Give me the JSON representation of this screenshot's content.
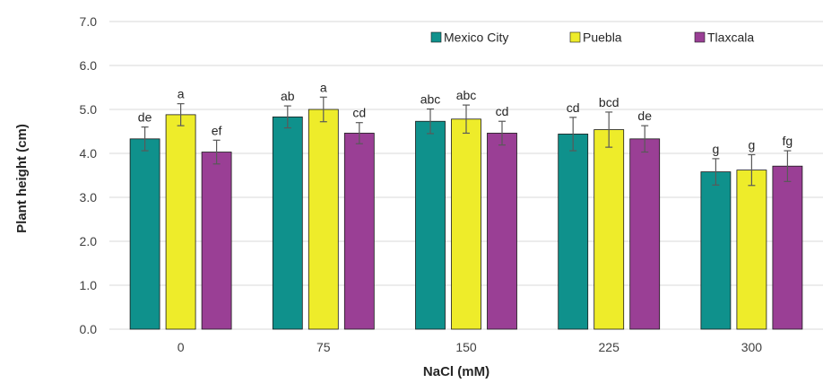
{
  "chart_data": {
    "type": "bar",
    "title": "",
    "xlabel": "NaCl (mM)",
    "ylabel": "Plant height (cm)",
    "ylim": [
      0,
      7
    ],
    "yticks": [
      "0.0",
      "1.0",
      "2.0",
      "3.0",
      "4.0",
      "5.0",
      "6.0",
      "7.0"
    ],
    "grid": true,
    "legend_position": "top-right",
    "categories": [
      "0",
      "75",
      "150",
      "225",
      "300"
    ],
    "series": [
      {
        "name": "Mexico City",
        "color": "#0f918c",
        "values": [
          4.33,
          4.83,
          4.73,
          4.44,
          3.58
        ],
        "errors": [
          0.27,
          0.25,
          0.28,
          0.38,
          0.3
        ],
        "letters": [
          "de",
          "ab",
          "abc",
          "cd",
          "g"
        ]
      },
      {
        "name": "Puebla",
        "color": "#eeec2a",
        "values": [
          4.88,
          5.0,
          4.78,
          4.54,
          3.62
        ],
        "errors": [
          0.25,
          0.28,
          0.32,
          0.4,
          0.35
        ],
        "letters": [
          "a",
          "a",
          "abc",
          "bcd",
          "g"
        ]
      },
      {
        "name": "Tlaxcala",
        "color": "#9a3f95",
        "values": [
          4.03,
          4.46,
          4.46,
          4.33,
          3.71
        ],
        "errors": [
          0.27,
          0.24,
          0.27,
          0.3,
          0.35
        ],
        "letters": [
          "ef",
          "cd",
          "cd",
          "de",
          "fg"
        ]
      }
    ]
  }
}
